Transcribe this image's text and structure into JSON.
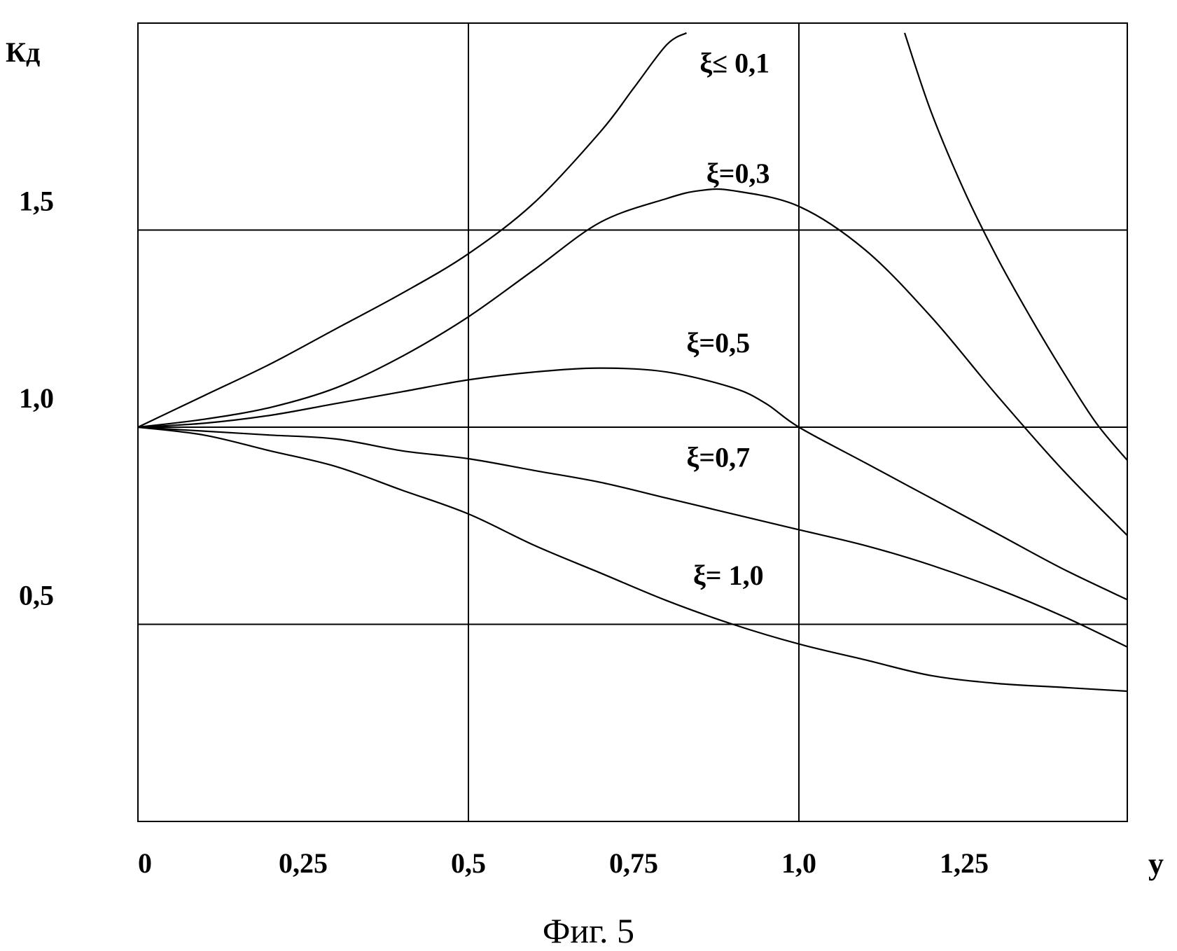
{
  "caption": "Фиг. 5",
  "chart_data": {
    "type": "line",
    "ylabel": "Кд",
    "xlabel": "у",
    "xlim": [
      0,
      1.5
    ],
    "ylim": [
      0,
      2.0
    ],
    "x_ticks": [
      {
        "value": 0,
        "label": "0"
      },
      {
        "value": 0.25,
        "label": "0,25"
      },
      {
        "value": 0.5,
        "label": "0,5"
      },
      {
        "value": 0.75,
        "label": "0,75"
      },
      {
        "value": 1.0,
        "label": "1,0"
      },
      {
        "value": 1.25,
        "label": "1,25"
      }
    ],
    "y_ticks": [
      {
        "value": 0.5,
        "label": "0,5"
      },
      {
        "value": 1.0,
        "label": "1,0"
      },
      {
        "value": 1.5,
        "label": "1,5"
      }
    ],
    "grid_x": [
      0.5,
      1.0
    ],
    "grid_y": [
      0.5,
      1.0,
      1.5
    ],
    "grid": true,
    "series": [
      {
        "name": "ξ≤ 0,1",
        "segments": [
          {
            "x": [
              0,
              0.1,
              0.2,
              0.3,
              0.4,
              0.5,
              0.6,
              0.7,
              0.75,
              0.8,
              0.83
            ],
            "y": [
              1.0,
              1.08,
              1.16,
              1.25,
              1.34,
              1.44,
              1.57,
              1.75,
              1.86,
              1.97,
              2.0
            ]
          },
          {
            "x": [
              1.16,
              1.2,
              1.25,
              1.3,
              1.35,
              1.4,
              1.45,
              1.5
            ],
            "y": [
              2.0,
              1.8,
              1.6,
              1.43,
              1.28,
              1.14,
              1.01,
              0.91
            ]
          }
        ],
        "label_at": [
          0.85,
          1.9
        ]
      },
      {
        "name": "ξ=0,3",
        "x": [
          0,
          0.1,
          0.2,
          0.3,
          0.4,
          0.5,
          0.6,
          0.7,
          0.8,
          0.85,
          0.9,
          1.0,
          1.1,
          1.2,
          1.3,
          1.4,
          1.5
        ],
        "y": [
          1.0,
          1.02,
          1.05,
          1.1,
          1.18,
          1.28,
          1.4,
          1.52,
          1.58,
          1.6,
          1.6,
          1.56,
          1.45,
          1.28,
          1.08,
          0.89,
          0.72
        ],
        "label_at": [
          0.86,
          1.62
        ]
      },
      {
        "name": "ξ=0,5",
        "x": [
          0,
          0.1,
          0.2,
          0.3,
          0.4,
          0.5,
          0.6,
          0.7,
          0.8,
          0.9,
          0.95,
          1.0,
          1.1,
          1.2,
          1.3,
          1.4,
          1.5
        ],
        "y": [
          1.0,
          1.01,
          1.03,
          1.06,
          1.09,
          1.12,
          1.14,
          1.15,
          1.14,
          1.1,
          1.06,
          1.0,
          0.91,
          0.82,
          0.73,
          0.64,
          0.56
        ],
        "label_at": [
          0.83,
          1.19
        ]
      },
      {
        "name": "ξ=0,7",
        "x": [
          0,
          0.1,
          0.2,
          0.3,
          0.4,
          0.5,
          0.6,
          0.7,
          0.8,
          0.9,
          1.0,
          1.1,
          1.2,
          1.3,
          1.4,
          1.5
        ],
        "y": [
          1.0,
          0.99,
          0.98,
          0.97,
          0.94,
          0.92,
          0.89,
          0.86,
          0.82,
          0.78,
          0.74,
          0.7,
          0.65,
          0.59,
          0.52,
          0.44
        ],
        "label_at": [
          0.83,
          0.9
        ]
      },
      {
        "name": "ξ= 1,0",
        "x": [
          0,
          0.1,
          0.2,
          0.3,
          0.4,
          0.5,
          0.6,
          0.7,
          0.8,
          0.9,
          1.0,
          1.1,
          1.2,
          1.3,
          1.4,
          1.5
        ],
        "y": [
          1.0,
          0.98,
          0.94,
          0.9,
          0.84,
          0.78,
          0.7,
          0.63,
          0.56,
          0.5,
          0.45,
          0.41,
          0.37,
          0.35,
          0.34,
          0.33
        ],
        "label_at": [
          0.84,
          0.6
        ]
      }
    ]
  }
}
